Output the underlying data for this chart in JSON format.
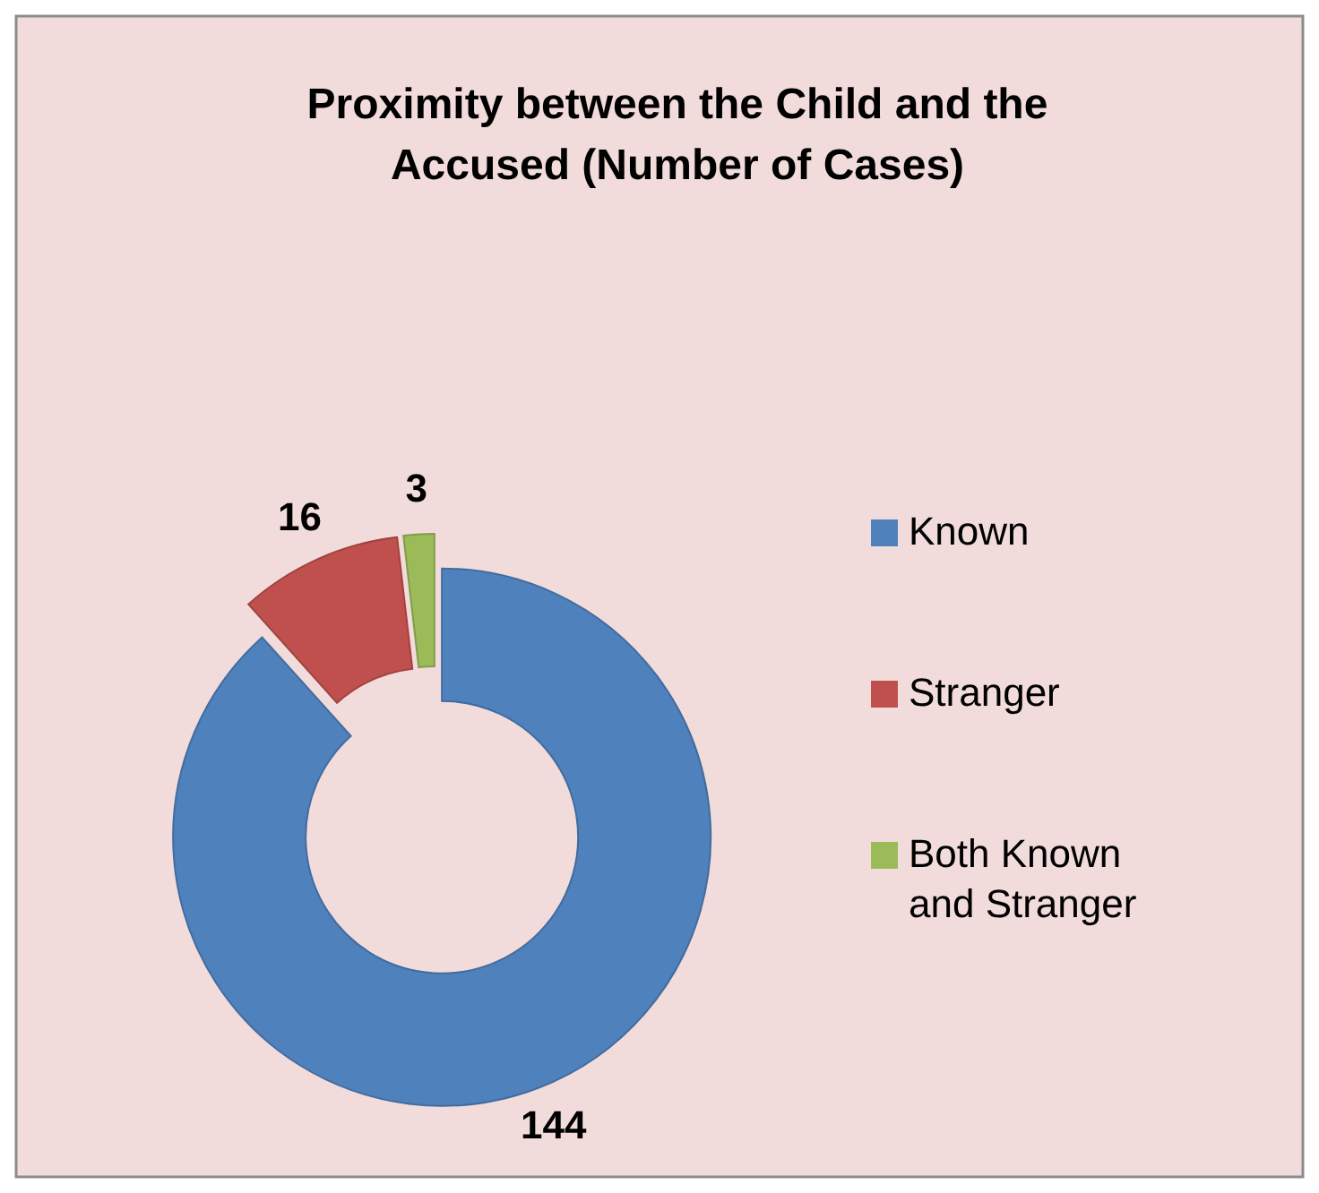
{
  "chart_data": {
    "type": "donut",
    "title": "Proximity between the Child and the Accused (Number of Cases)",
    "categories": [
      "Known",
      "Stranger",
      "Both Known and Stranger"
    ],
    "values": [
      144,
      16,
      3
    ],
    "colors": [
      "#4f81bd",
      "#c0504d",
      "#9bbb59"
    ],
    "data_labels": true,
    "legend": "right"
  }
}
